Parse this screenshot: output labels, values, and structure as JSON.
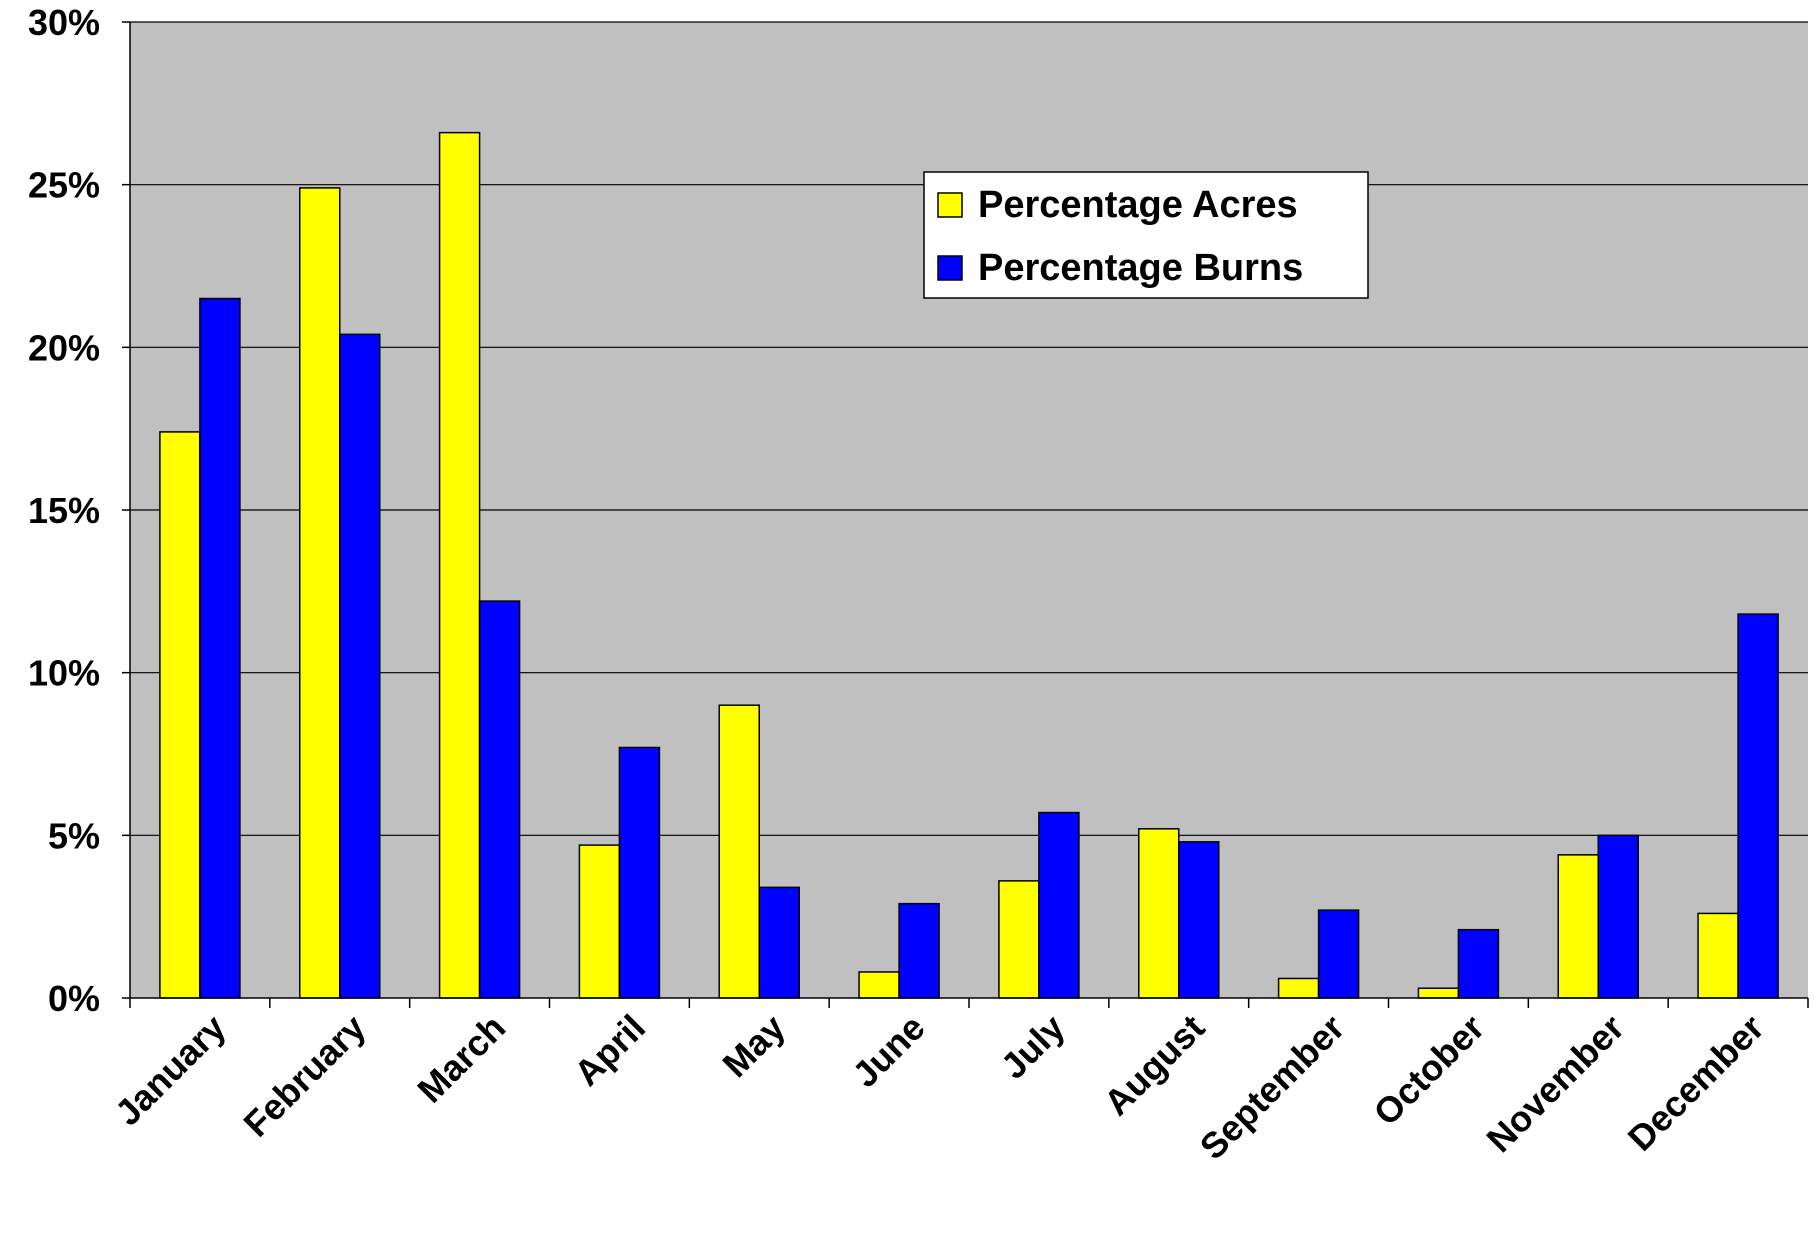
{
  "chart_data": {
    "type": "bar",
    "title": "",
    "xlabel": "",
    "ylabel": "",
    "ylim": [
      0,
      30
    ],
    "y_ticks": [
      "0%",
      "5%",
      "10%",
      "15%",
      "20%",
      "25%",
      "30%"
    ],
    "y_tick_values": [
      0,
      5,
      10,
      15,
      20,
      25,
      30
    ],
    "grid": true,
    "legend_position": "top-right",
    "plot_background": "#c0c0c0",
    "categories": [
      "January",
      "February",
      "March",
      "April",
      "May",
      "June",
      "July",
      "August",
      "September",
      "October",
      "November",
      "December"
    ],
    "series": [
      {
        "name": "Percentage Acres",
        "color": "#ffff00",
        "values": [
          17.4,
          24.9,
          26.6,
          4.7,
          9.0,
          0.8,
          3.6,
          5.2,
          0.6,
          0.3,
          4.4,
          2.6
        ]
      },
      {
        "name": "Percentage Burns",
        "color": "#0000ff",
        "values": [
          21.5,
          20.4,
          12.2,
          7.7,
          3.4,
          2.9,
          5.7,
          4.8,
          2.7,
          2.1,
          5.0,
          11.8
        ]
      }
    ]
  }
}
